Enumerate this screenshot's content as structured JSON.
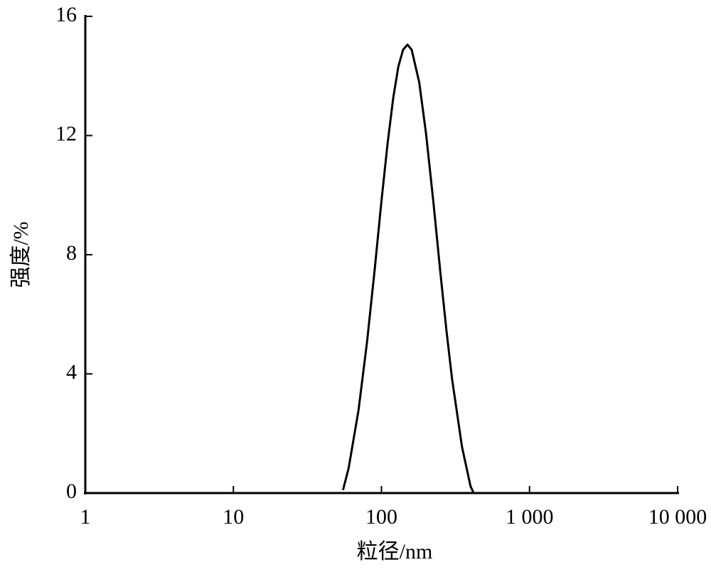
{
  "chart_data": {
    "type": "line",
    "x_label": "粒径/nm",
    "y_label": "强度/%",
    "xscale": "log",
    "xlim": [
      1,
      10000
    ],
    "xticks": [
      1,
      10,
      100,
      {
        "value": 1000,
        "label": "1 000"
      },
      {
        "value": 10000,
        "label": "10 000"
      }
    ],
    "ylim": [
      0,
      16
    ],
    "yticks": [
      0,
      4,
      8,
      12,
      16
    ],
    "grid": false,
    "series": [
      {
        "color": "#000000",
        "x": [
          55,
          60,
          70,
          80,
          90,
          100,
          110,
          120,
          130,
          140,
          150,
          160,
          180,
          200,
          225,
          250,
          275,
          300,
          350,
          400,
          420
        ],
        "values": [
          0.1,
          0.83,
          2.78,
          5.09,
          7.5,
          9.8,
          11.73,
          13.25,
          14.31,
          14.88,
          15.05,
          14.88,
          13.78,
          12.07,
          9.7,
          7.4,
          5.44,
          3.82,
          1.55,
          0.22,
          0
        ]
      }
    ]
  }
}
